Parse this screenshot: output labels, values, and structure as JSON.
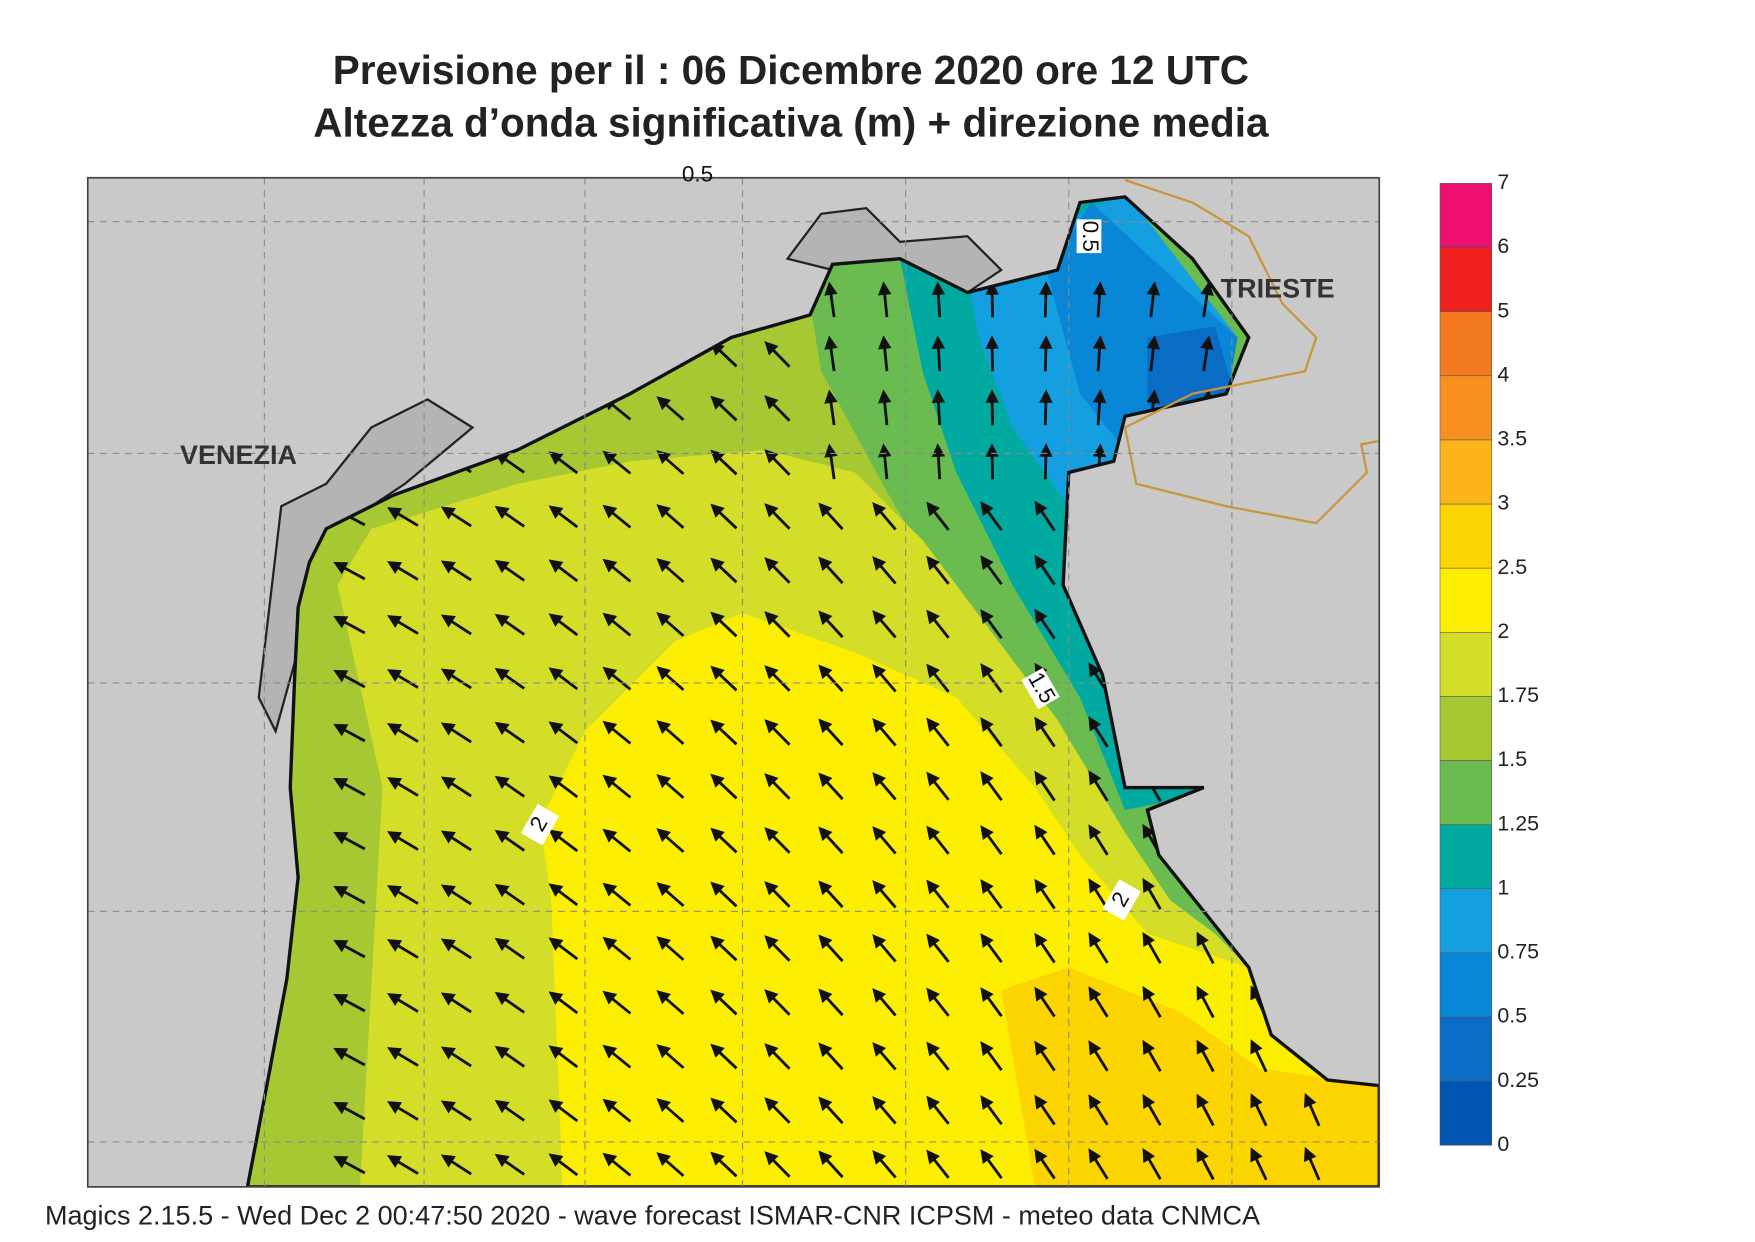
{
  "header": {
    "title": "Previsione per il  :  06 Dicembre  2020   ore 12 UTC",
    "subtitle": "Altezza d’onda significativa (m) + direzione media"
  },
  "map": {
    "places": [
      "VENEZIA",
      "TRIESTE"
    ],
    "contour_labels": [
      "0.5",
      "1.5",
      "2",
      "2",
      "0.5"
    ]
  },
  "legend": {
    "ticks": [
      0,
      0.25,
      0.5,
      0.75,
      1,
      1.25,
      1.5,
      1.75,
      2,
      2.5,
      3,
      3.5,
      4,
      5,
      6,
      7
    ],
    "colors": [
      "#0055b0",
      "#0a6cc4",
      "#0a86d6",
      "#14a0e0",
      "#00aaa0",
      "#6abb50",
      "#a6c832",
      "#d4dd28",
      "#fcee00",
      "#fcd400",
      "#fcb418",
      "#f89020",
      "#f47a20",
      "#ee2020",
      "#ee1070"
    ]
  },
  "footer": "Magics 2.15.5 - Wed Dec  2 00:47:50 2020 - wave forecast  ISMAR-CNR  ICPSM - meteo data   CNMCA"
}
